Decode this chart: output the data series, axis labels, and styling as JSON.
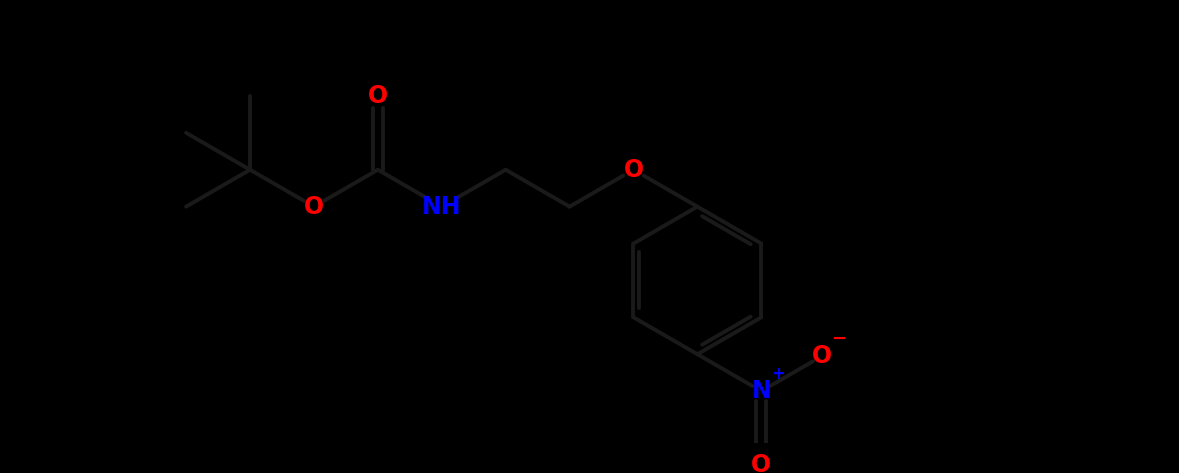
{
  "bg": "#000000",
  "bond_color": "#1a1a1a",
  "O_color": "#ff0000",
  "N_color": "#0000ff",
  "figsize": [
    11.79,
    4.73
  ],
  "dpi": 100,
  "lw": 2.8,
  "fs": 17,
  "bl": 1.0,
  "xlim": [
    -0.5,
    12.5
  ],
  "ylim": [
    -2.5,
    3.5
  ]
}
